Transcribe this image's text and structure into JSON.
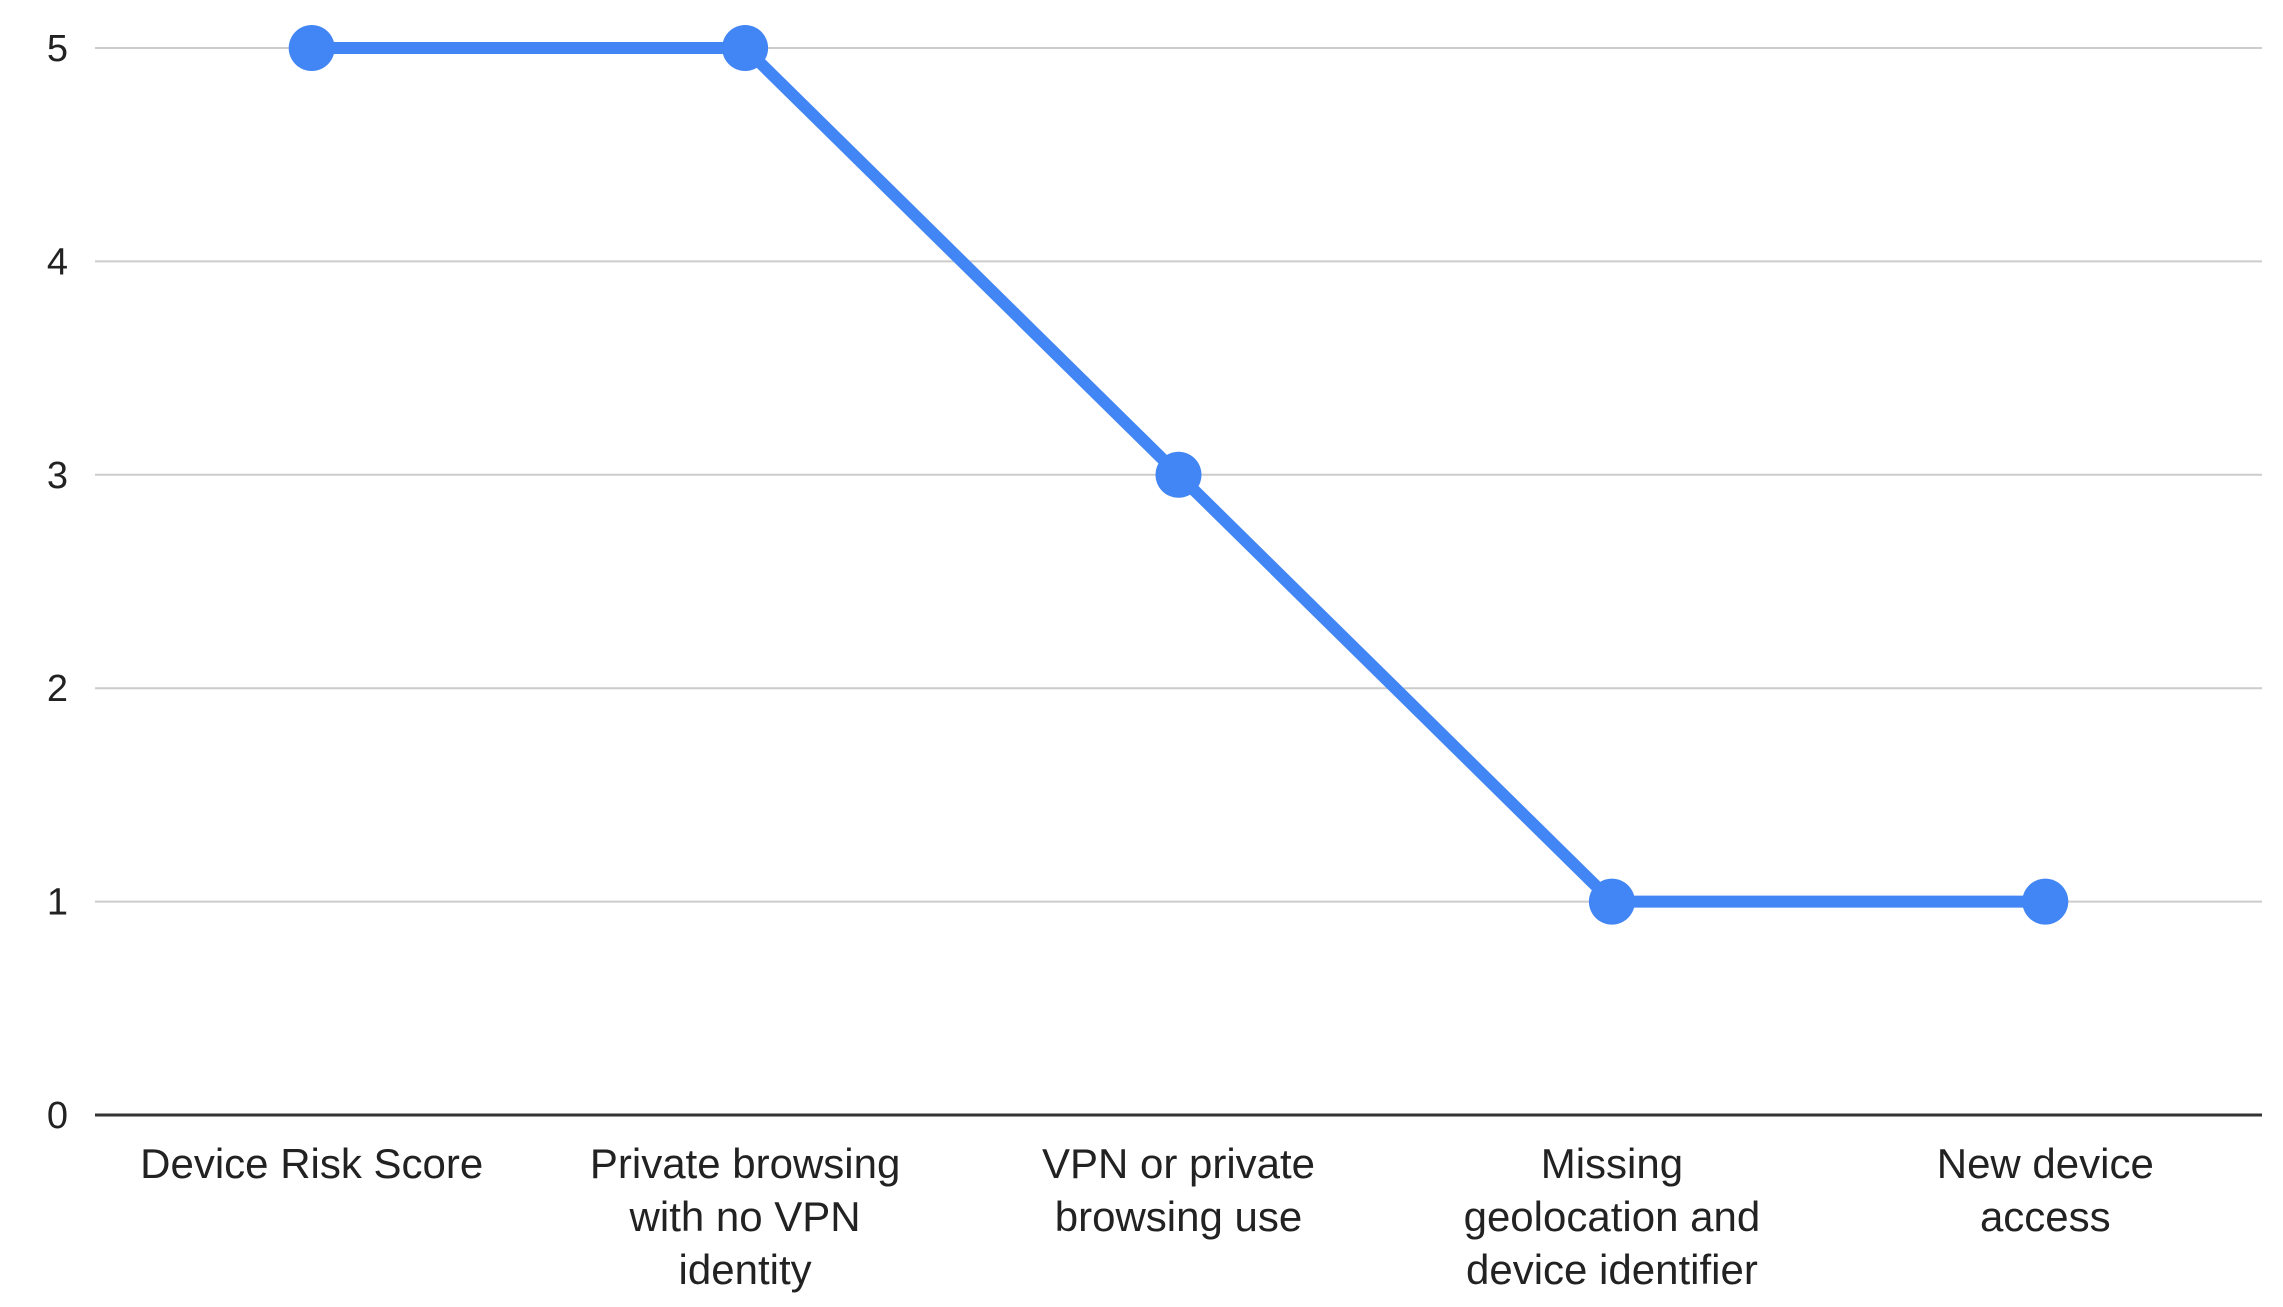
{
  "chart_data": {
    "type": "line",
    "categories": [
      [
        "Device Risk Score"
      ],
      [
        "Private browsing",
        "with no VPN",
        "identity"
      ],
      [
        "VPN or private",
        "browsing use"
      ],
      [
        "Missing",
        "geolocation and",
        "device identifier"
      ],
      [
        "New device",
        "access"
      ]
    ],
    "series": [
      {
        "values": [
          5,
          5,
          3,
          1,
          1
        ],
        "color": "#4285f4"
      }
    ],
    "ylim": [
      0,
      5
    ],
    "yticks": [
      0,
      1,
      2,
      3,
      4,
      5
    ],
    "grid": true,
    "title": "",
    "xlabel": "",
    "ylabel": ""
  }
}
